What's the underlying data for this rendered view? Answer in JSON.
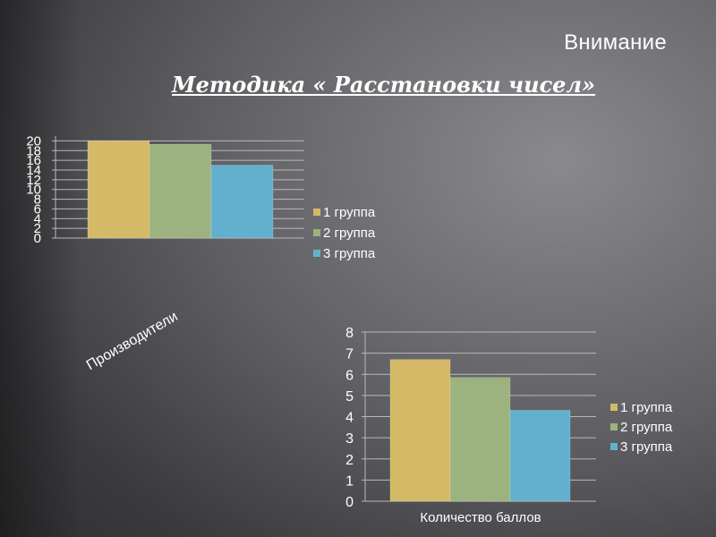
{
  "header": {
    "title": "Внимание",
    "subtitle": "Методика « Расстановки чисел»"
  },
  "chart_data": [
    {
      "type": "bar",
      "categories": [
        "Производители"
      ],
      "series": [
        {
          "name": "1 группа",
          "values": [
            20
          ],
          "color": "#d4b966"
        },
        {
          "name": "2 группа",
          "values": [
            19.3
          ],
          "color": "#9cb27f"
        },
        {
          "name": "3 группа",
          "values": [
            15
          ],
          "color": "#62b0cd"
        }
      ],
      "ylim": [
        0,
        21
      ],
      "yticks": [
        "0",
        "2",
        "4",
        "6",
        "8",
        "10",
        "12",
        "14",
        "16",
        "18",
        "20"
      ],
      "legend": "right",
      "grid": true,
      "category_label_rotated": true
    },
    {
      "type": "bar",
      "categories": [
        "Количество баллов"
      ],
      "series": [
        {
          "name": "1 группа",
          "values": [
            6.7
          ],
          "color": "#d4b966"
        },
        {
          "name": "2 группа",
          "values": [
            5.85
          ],
          "color": "#9cb27f"
        },
        {
          "name": "3 группа",
          "values": [
            4.3
          ],
          "color": "#62b0cd"
        }
      ],
      "ylim": [
        0,
        8
      ],
      "yticks": [
        "0",
        "1",
        "2",
        "3",
        "4",
        "5",
        "6",
        "7",
        "8"
      ],
      "legend": "right",
      "grid": true
    }
  ]
}
